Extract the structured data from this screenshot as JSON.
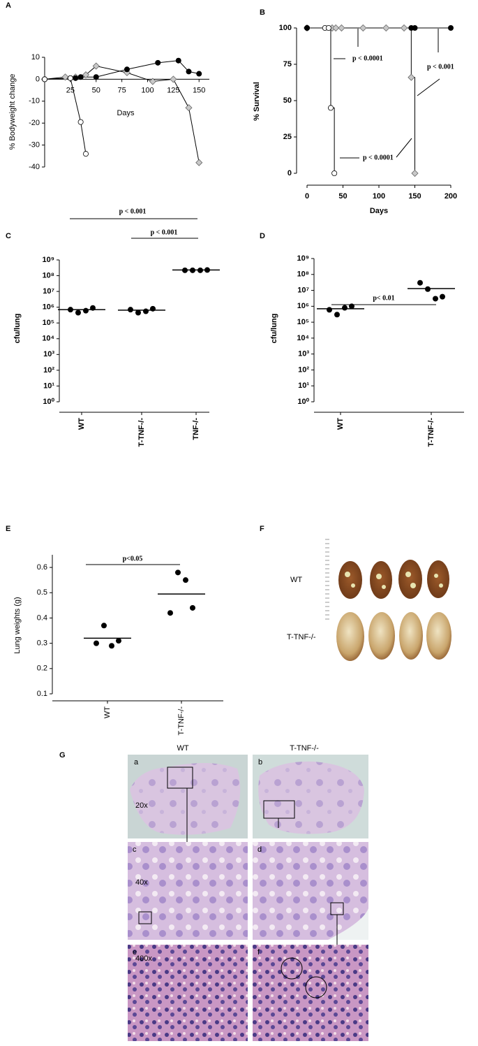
{
  "panel_labels": [
    "A",
    "B",
    "C",
    "D",
    "E",
    "F",
    "G"
  ],
  "chart_data": [
    {
      "type": "line",
      "x_label": "Days",
      "y_label": "% Bodyweight change",
      "xlim": [
        0,
        160
      ],
      "xticks": [
        25,
        50,
        75,
        100,
        125,
        150
      ],
      "ylim": [
        -40,
        10
      ],
      "yticks": [
        10,
        0,
        -10,
        -20,
        -30,
        -40
      ],
      "series": [
        {
          "marker": "diamond",
          "color": "#c8c8c8",
          "x": [
            0,
            20,
            30,
            40,
            50,
            80,
            105,
            125,
            140,
            150
          ],
          "values": [
            0,
            1,
            1,
            2,
            6,
            3,
            -1,
            0,
            -13,
            -38
          ]
        },
        {
          "marker": "circle-filled",
          "color": "#000000",
          "x": [
            0,
            25,
            30,
            35,
            50,
            80,
            110,
            130,
            140,
            150
          ],
          "values": [
            0,
            0.5,
            0.5,
            1,
            1,
            4.5,
            7.5,
            8.5,
            3.5,
            2.5
          ]
        },
        {
          "marker": "circle-open",
          "color": "#ffffff",
          "x": [
            0,
            25,
            35,
            40
          ],
          "values": [
            0,
            0.5,
            -19.5,
            -34
          ]
        }
      ]
    },
    {
      "type": "step",
      "x_label": "Days",
      "y_label": "% Survival",
      "xlim": [
        0,
        200
      ],
      "xticks": [
        0,
        50,
        100,
        150,
        200
      ],
      "ylim": [
        0,
        100
      ],
      "yticks": [
        0,
        25,
        50,
        75,
        100
      ],
      "series": [
        {
          "marker": "diamond",
          "color": "#c8c8c8",
          "x": [
            0,
            35,
            40,
            48,
            78,
            110,
            135,
            145,
            150
          ],
          "values": [
            100,
            100,
            100,
            100,
            100,
            100,
            100,
            66,
            0
          ]
        },
        {
          "marker": "circle-open",
          "color": "#ffffff",
          "x": [
            0,
            25,
            30,
            33,
            38
          ],
          "values": [
            100,
            100,
            100,
            45,
            0
          ]
        },
        {
          "marker": "circle-filled",
          "color": "#000000",
          "x": [
            0,
            145,
            150,
            200
          ],
          "values": [
            100,
            100,
            100,
            100
          ]
        }
      ],
      "annotations": [
        "p < 0.0001",
        "p < 0.0001",
        "p < 0.001"
      ]
    },
    {
      "type": "dot",
      "log_y": true,
      "y_label": "cfu/lung",
      "color": "#000000",
      "ylim": [
        1,
        1000000000
      ],
      "yticks": [
        {
          "value": 1,
          "label": "10⁰"
        },
        {
          "value": 10,
          "label": "10¹"
        },
        {
          "value": 100,
          "label": "10²"
        },
        {
          "value": 1000,
          "label": "10³"
        },
        {
          "value": 10000,
          "label": "10⁴"
        },
        {
          "value": 100000,
          "label": "10⁵"
        },
        {
          "value": 1000000,
          "label": "10⁶"
        },
        {
          "value": 10000000,
          "label": "10⁷"
        },
        {
          "value": 100000000,
          "label": "10⁸"
        },
        {
          "value": 1000000000,
          "label": "10⁹"
        }
      ],
      "categories": [
        "WT",
        "T-TNF-/-",
        "TNF-/-"
      ],
      "values": [
        [
          700000,
          450000,
          600000,
          900000
        ],
        [
          700000,
          450000,
          550000,
          800000
        ],
        [
          220000000,
          220000000,
          220000000,
          230000000
        ]
      ],
      "means": [
        700000,
        650000,
        230000000
      ],
      "annotations": [
        "p < 0.001",
        "p < 0.001"
      ]
    },
    {
      "type": "dot",
      "log_y": true,
      "y_label": "cfu/lung",
      "color": "#000000",
      "ylim": [
        1,
        1000000000
      ],
      "yticks": [
        {
          "value": 1,
          "label": "10⁰"
        },
        {
          "value": 10,
          "label": "10¹"
        },
        {
          "value": 100,
          "label": "10²"
        },
        {
          "value": 1000,
          "label": "10³"
        },
        {
          "value": 10000,
          "label": "10⁴"
        },
        {
          "value": 100000,
          "label": "10⁵"
        },
        {
          "value": 1000000,
          "label": "10⁶"
        },
        {
          "value": 10000000,
          "label": "10⁷"
        },
        {
          "value": 100000000,
          "label": "10⁸"
        },
        {
          "value": 1000000000,
          "label": "10⁹"
        }
      ],
      "categories": [
        "WT",
        "T-TNF-/-"
      ],
      "values": [
        [
          600000,
          300000,
          800000,
          1000000
        ],
        [
          30000000,
          12000000,
          3000000,
          4000000
        ]
      ],
      "means": [
        700000,
        13000000
      ],
      "annotations": [
        "p< 0.01"
      ]
    },
    {
      "type": "dot",
      "y_label": "Lung weights (g)",
      "color": "#000000",
      "ylim": [
        0.1,
        0.65
      ],
      "yticks": [
        0.1,
        0.2,
        0.3,
        0.4,
        0.5,
        0.6
      ],
      "categories": [
        "WT",
        "T-TNF-/-"
      ],
      "values": [
        [
          0.3,
          0.37,
          0.29,
          0.31
        ],
        [
          0.42,
          0.58,
          0.55,
          0.44
        ]
      ],
      "means": [
        0.32,
        0.495
      ],
      "annotations": [
        "p<0.05"
      ]
    }
  ],
  "figure_f": {
    "rows": [
      "WT",
      "T-TNF-/-"
    ]
  },
  "figure_g": {
    "columns": [
      "WT",
      "T-TNF-/-"
    ],
    "rows": [
      "20x",
      "40x",
      "400x"
    ],
    "subpanels": [
      "a",
      "b",
      "c",
      "d",
      "e",
      "f"
    ]
  }
}
